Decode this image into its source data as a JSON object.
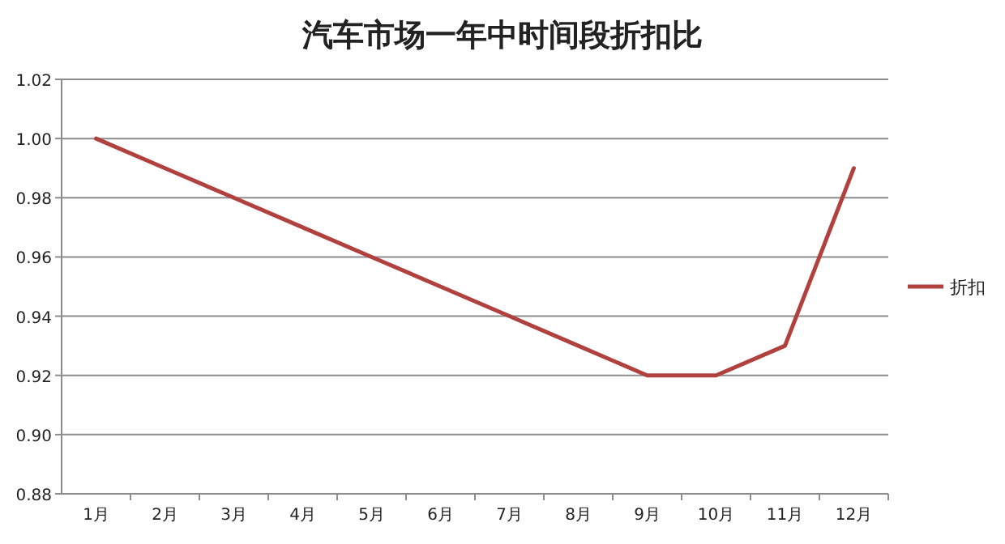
{
  "chart_data": {
    "type": "line",
    "title": "汽车市场一年中时间段折扣比",
    "categories": [
      "1月",
      "2月",
      "3月",
      "4月",
      "5月",
      "6月",
      "7月",
      "8月",
      "9月",
      "10月",
      "11月",
      "12月"
    ],
    "series": [
      {
        "name": "折扣",
        "color": "#b0413e",
        "values": [
          1.0,
          0.99,
          0.98,
          0.97,
          0.96,
          0.95,
          0.94,
          0.93,
          0.92,
          0.92,
          0.93,
          0.99
        ]
      }
    ],
    "ylim": [
      0.88,
      1.02
    ],
    "yticks": [
      {
        "value": 0.88,
        "label": "0.88"
      },
      {
        "value": 0.9,
        "label": "0.90"
      },
      {
        "value": 0.92,
        "label": "0.92"
      },
      {
        "value": 0.94,
        "label": "0.94"
      },
      {
        "value": 0.96,
        "label": "0.96"
      },
      {
        "value": 0.98,
        "label": "0.98"
      },
      {
        "value": 1.0,
        "label": "1.00"
      },
      {
        "value": 1.02,
        "label": "1.02"
      }
    ],
    "grid": "y",
    "legend": "right"
  }
}
